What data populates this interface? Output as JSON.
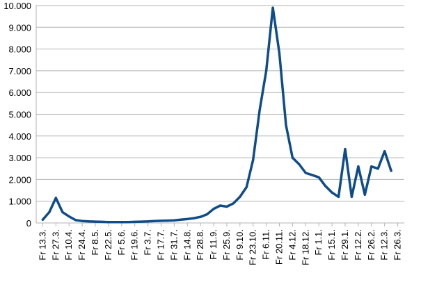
{
  "chart_data": {
    "type": "line",
    "title": "",
    "xlabel": "",
    "ylabel": "",
    "ylim": [
      0,
      10000
    ],
    "grid": true,
    "legend": "none",
    "colors": {
      "series": "#0e4c8a",
      "grid": "#b3b3b3",
      "axis": "#b3b3b3",
      "text": "#000000"
    },
    "y_ticks": [
      {
        "value": 0,
        "label": "0"
      },
      {
        "value": 1000,
        "label": "1.000"
      },
      {
        "value": 2000,
        "label": "2.000"
      },
      {
        "value": 3000,
        "label": "3.000"
      },
      {
        "value": 4000,
        "label": "4.000"
      },
      {
        "value": 5000,
        "label": "5.000"
      },
      {
        "value": 6000,
        "label": "6.000"
      },
      {
        "value": 7000,
        "label": "7.000"
      },
      {
        "value": 8000,
        "label": "8.000"
      },
      {
        "value": 9000,
        "label": "9.000"
      },
      {
        "value": 10000,
        "label": "10.000"
      }
    ],
    "x_tick_labels": [
      "Fr 13.3.",
      "Fr 27.3.",
      "Fr 10.4.",
      "Fr 24.4.",
      "Fr 8.5.",
      "Fr 22.5.",
      "Fr 5.6.",
      "Fr 19.6.",
      "Fr 3.7.",
      "Fr 17.7.",
      "Fr 31.7.",
      "Fr 14.8.",
      "Fr 28.8.",
      "Fr 11.9.",
      "Fr 25.9.",
      "Fr 9.10.",
      "Fr 23.10.",
      "Fr 6.11.",
      "Fr 20.11.",
      "Fr 4.12.",
      "Fr 18.12.",
      "Fr 1.1.",
      "Fr 15.1.",
      "Fr 29.1.",
      "Fr 12.2.",
      "Fr 26.2.",
      "Fr 12.3.",
      "Fr 26.3."
    ],
    "series": [
      {
        "x": [
          "Fr 13.3.",
          "Fr 20.3.",
          "Fr 27.3.",
          "Fr 3.4.",
          "Fr 10.4.",
          "Fr 17.4.",
          "Fr 24.4.",
          "Fr 1.5.",
          "Fr 8.5.",
          "Fr 15.5.",
          "Fr 22.5.",
          "Fr 29.5.",
          "Fr 5.6.",
          "Fr 12.6.",
          "Fr 19.6.",
          "Fr 26.6.",
          "Fr 3.7.",
          "Fr 10.7.",
          "Fr 17.7.",
          "Fr 24.7.",
          "Fr 31.7.",
          "Fr 7.8.",
          "Fr 14.8.",
          "Fr 21.8.",
          "Fr 28.8.",
          "Fr 4.9.",
          "Fr 11.9.",
          "Fr 18.9.",
          "Fr 25.9.",
          "Fr 2.10.",
          "Fr 9.10.",
          "Fr 16.10.",
          "Fr 23.10.",
          "Fr 30.10.",
          "Fr 6.11.",
          "Fr 13.11.",
          "Fr 20.11.",
          "Fr 27.11.",
          "Fr 4.12.",
          "Fr 11.12.",
          "Fr 18.12.",
          "Fr 25.12.",
          "Fr 1.1.",
          "Fr 8.1.",
          "Fr 15.1.",
          "Fr 22.1.",
          "Fr 29.1.",
          "Fr 5.2.",
          "Fr 12.2.",
          "Fr 19.2.",
          "Fr 26.2.",
          "Fr 5.3.",
          "Fr 12.3.",
          "Fr 19.3."
        ],
        "values": [
          150,
          500,
          1150,
          500,
          300,
          130,
          90,
          70,
          60,
          50,
          40,
          40,
          40,
          40,
          50,
          60,
          70,
          90,
          100,
          110,
          120,
          150,
          180,
          220,
          280,
          400,
          650,
          800,
          750,
          900,
          1200,
          1650,
          2900,
          5200,
          7000,
          9900,
          7800,
          4500,
          3000,
          2700,
          2300,
          2200,
          2100,
          1700,
          1400,
          1200,
          3400,
          1200,
          2600,
          1300,
          2600,
          2500,
          3300,
          2400
        ]
      }
    ]
  }
}
